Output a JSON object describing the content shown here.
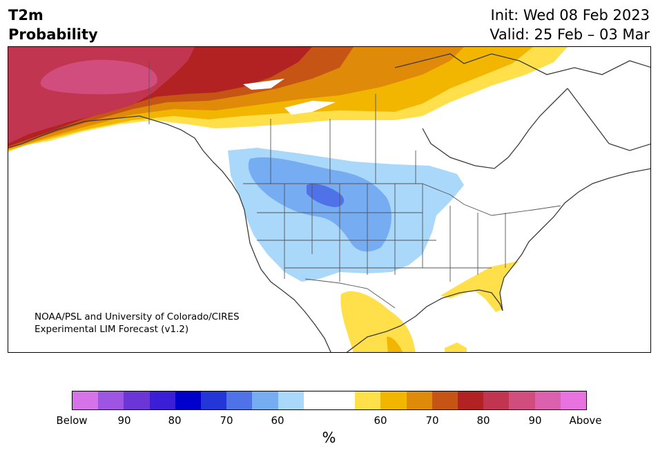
{
  "header": {
    "title_line1": "T2m",
    "title_line2": "Probability",
    "init": "Init: Wed 08 Feb 2023",
    "valid": "Valid: 25 Feb – 03 Mar"
  },
  "map": {
    "credit_line1": "NOAA/PSL and University of Colorado/CIRES",
    "credit_line2": "Experimental LIM Forecast (v1.2)"
  },
  "colorbar": {
    "unit": "%",
    "colors": [
      "#d673e8",
      "#9e55e3",
      "#6b35d8",
      "#3a1fd6",
      "#0000cd",
      "#2536d9",
      "#4f72e8",
      "#76acf2",
      "#a9d8fb",
      "#ffffff",
      "#ffffff",
      "#ffe04a",
      "#f2b600",
      "#e08a0a",
      "#c65515",
      "#b22222",
      "#c23550",
      "#d14d7e",
      "#db60ad",
      "#e873e0"
    ],
    "tick_labels": [
      "Below",
      "90",
      "80",
      "70",
      "60",
      "60",
      "70",
      "80",
      "90",
      "Above"
    ]
  }
}
